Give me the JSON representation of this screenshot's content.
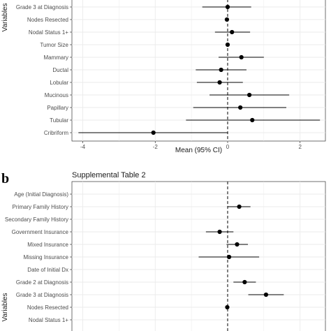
{
  "panel_b": {
    "letter": "b"
  },
  "chart_data": [
    {
      "type": "forest",
      "title": "",
      "xlabel": "Mean (95% CI)",
      "ylabel": "Variables",
      "xlim": [
        -4.3,
        2.7
      ],
      "xticks": [
        -4,
        -2,
        0,
        2
      ],
      "reference_line": 0,
      "grid": true,
      "categories": [
        "Grade 3 at Diagnosis",
        "Nodes Resected",
        "Nodal Status 1+",
        "Tumor Size",
        "Mammary",
        "Ductal",
        "Lobular",
        "Mucinous",
        "Papillary",
        "Tubular",
        "Cribriform"
      ],
      "series": [
        {
          "mean": [
            0.0,
            -0.02,
            0.12,
            0.0,
            0.38,
            -0.18,
            -0.22,
            0.6,
            0.35,
            0.68,
            -2.05
          ],
          "lower": [
            -0.7,
            -0.05,
            -0.35,
            -0.02,
            -0.25,
            -0.88,
            -0.85,
            -0.5,
            -0.95,
            -1.15,
            -4.12
          ],
          "upper": [
            0.65,
            0.02,
            0.62,
            0.02,
            1.0,
            0.52,
            0.42,
            1.7,
            1.62,
            2.55,
            0.0
          ]
        }
      ]
    },
    {
      "type": "forest",
      "title": "Supplemental Table 2",
      "xlabel": "",
      "ylabel": "Variables",
      "xlim": [
        -4.3,
        2.7
      ],
      "xticks": [],
      "reference_line": 0,
      "grid": true,
      "categories": [
        "Age (Initial Diagnosis)",
        "Primary Family History",
        "Secondary Family History",
        "Government Insurance",
        "Mixed Insurance",
        "Missing Insurance",
        "Date of Initial Dx",
        "Grade 2 at Diagnosis",
        "Grade 3 at Diagnosis",
        "Nodes Resected",
        "Nodal Status 1+"
      ],
      "series": [
        {
          "mean": [
            null,
            0.32,
            null,
            -0.22,
            0.26,
            0.04,
            null,
            0.47,
            1.06,
            -0.01,
            null
          ],
          "lower": [
            null,
            0.0,
            null,
            -0.6,
            -0.03,
            -0.8,
            null,
            0.16,
            0.57,
            -0.03,
            null
          ],
          "upper": [
            null,
            0.63,
            null,
            0.16,
            0.56,
            0.87,
            null,
            0.78,
            1.55,
            0.01,
            null
          ]
        }
      ]
    }
  ]
}
